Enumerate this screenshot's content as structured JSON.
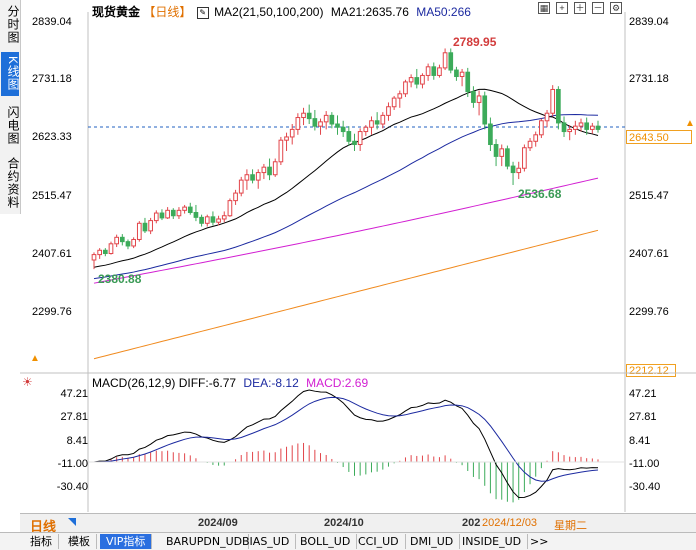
{
  "side_tabs": [
    {
      "label": "分时图",
      "active": false
    },
    {
      "label": "K线图",
      "active": true
    },
    {
      "label": "闪电图",
      "active": false
    },
    {
      "label": "合约资料",
      "active": false
    }
  ],
  "header": {
    "instrument": "现货黄金",
    "period": "【日线】",
    "ma_label": "MA2(21,50,100,200)",
    "ma21": "MA21:2635.76",
    "ma50": "MA50:266"
  },
  "price_axis": {
    "labels": [
      "2839.04",
      "2731.18",
      "2623.33",
      "2515.47",
      "2407.61",
      "2299.76"
    ],
    "last_price": "2643.50",
    "bottom_price": "2212.12"
  },
  "annotations": {
    "high": "2789.95",
    "mid_low": "2536.68",
    "low": "2380.88"
  },
  "macd": {
    "label": "MACD(26,12,9)",
    "diff": "DIFF:-6.77",
    "dea": "DEA:-8.12",
    "macd": "MACD:2.69",
    "axis_labels": [
      "47.21",
      "27.81",
      "8.41",
      "-11.00",
      "-30.40"
    ]
  },
  "time_axis": {
    "labels": [
      "2024/09",
      "2024/10",
      "202"
    ],
    "cursor_date": "2024/12/03",
    "cursor_day": "星期二",
    "period_button": "日线"
  },
  "bottom_tabs": [
    "指标",
    "模板",
    "VIP指标",
    "BARUPDN_UD",
    "BIAS_UD",
    "BOLL_UD",
    "CCI_UD",
    "DMI_UD",
    "INSIDE_UD",
    ">>"
  ],
  "active_bottom_tab": "VIP指标",
  "colors": {
    "up": "#e2454a",
    "down": "#3cab5a",
    "ma21": "#000000",
    "ma50": "#1c2aa0",
    "ma100": "#d21fd2",
    "ma200": "#f08a1e",
    "accent": "#1e6fd9"
  },
  "chart_data": {
    "type": "candlestick",
    "candles": [
      [
        2398,
        2412,
        2381,
        2408
      ],
      [
        2408,
        2420,
        2400,
        2416
      ],
      [
        2416,
        2420,
        2405,
        2410
      ],
      [
        2410,
        2432,
        2408,
        2428
      ],
      [
        2428,
        2445,
        2422,
        2440
      ],
      [
        2440,
        2446,
        2425,
        2432
      ],
      [
        2432,
        2436,
        2418,
        2424
      ],
      [
        2424,
        2440,
        2420,
        2436
      ],
      [
        2436,
        2470,
        2432,
        2466
      ],
      [
        2466,
        2476,
        2448,
        2452
      ],
      [
        2452,
        2476,
        2446,
        2471
      ],
      [
        2471,
        2490,
        2466,
        2485
      ],
      [
        2485,
        2492,
        2472,
        2476
      ],
      [
        2476,
        2496,
        2474,
        2490
      ],
      [
        2490,
        2494,
        2474,
        2480
      ],
      [
        2480,
        2496,
        2474,
        2490
      ],
      [
        2490,
        2500,
        2484,
        2496
      ],
      [
        2496,
        2504,
        2482,
        2486
      ],
      [
        2486,
        2500,
        2470,
        2477
      ],
      [
        2477,
        2482,
        2460,
        2466
      ],
      [
        2466,
        2482,
        2460,
        2478
      ],
      [
        2478,
        2488,
        2462,
        2468
      ],
      [
        2468,
        2480,
        2462,
        2474
      ],
      [
        2474,
        2488,
        2468,
        2480
      ],
      [
        2480,
        2512,
        2478,
        2508
      ],
      [
        2508,
        2528,
        2500,
        2522
      ],
      [
        2522,
        2552,
        2516,
        2546
      ],
      [
        2546,
        2566,
        2528,
        2556
      ],
      [
        2556,
        2566,
        2540,
        2546
      ],
      [
        2546,
        2566,
        2530,
        2560
      ],
      [
        2560,
        2576,
        2548,
        2570
      ],
      [
        2570,
        2586,
        2546,
        2556
      ],
      [
        2556,
        2586,
        2552,
        2580
      ],
      [
        2580,
        2626,
        2574,
        2620
      ],
      [
        2620,
        2634,
        2600,
        2626
      ],
      [
        2626,
        2650,
        2612,
        2640
      ],
      [
        2640,
        2670,
        2630,
        2662
      ],
      [
        2662,
        2680,
        2648,
        2670
      ],
      [
        2670,
        2686,
        2650,
        2660
      ],
      [
        2660,
        2676,
        2638,
        2646
      ],
      [
        2646,
        2660,
        2630,
        2654
      ],
      [
        2654,
        2674,
        2640,
        2666
      ],
      [
        2666,
        2672,
        2642,
        2650
      ],
      [
        2650,
        2666,
        2630,
        2644
      ],
      [
        2644,
        2656,
        2626,
        2636
      ],
      [
        2636,
        2646,
        2610,
        2618
      ],
      [
        2618,
        2632,
        2600,
        2612
      ],
      [
        2612,
        2642,
        2600,
        2636
      ],
      [
        2636,
        2648,
        2628,
        2644
      ],
      [
        2644,
        2664,
        2630,
        2656
      ],
      [
        2656,
        2672,
        2640,
        2650
      ],
      [
        2650,
        2672,
        2642,
        2666
      ],
      [
        2666,
        2690,
        2656,
        2682
      ],
      [
        2682,
        2702,
        2676,
        2698
      ],
      [
        2698,
        2712,
        2680,
        2706
      ],
      [
        2706,
        2732,
        2700,
        2728
      ],
      [
        2728,
        2742,
        2718,
        2736
      ],
      [
        2736,
        2752,
        2716,
        2724
      ],
      [
        2724,
        2744,
        2716,
        2740
      ],
      [
        2740,
        2762,
        2730,
        2756
      ],
      [
        2756,
        2764,
        2732,
        2740
      ],
      [
        2740,
        2760,
        2736,
        2754
      ],
      [
        2754,
        2790,
        2750,
        2782
      ],
      [
        2782,
        2790,
        2744,
        2750
      ],
      [
        2750,
        2756,
        2730,
        2738
      ],
      [
        2738,
        2752,
        2720,
        2746
      ],
      [
        2746,
        2754,
        2700,
        2710
      ],
      [
        2710,
        2720,
        2680,
        2690
      ],
      [
        2690,
        2712,
        2666,
        2702
      ],
      [
        2702,
        2710,
        2640,
        2650
      ],
      [
        2650,
        2662,
        2600,
        2612
      ],
      [
        2612,
        2622,
        2572,
        2590
      ],
      [
        2590,
        2612,
        2572,
        2604
      ],
      [
        2604,
        2610,
        2566,
        2572
      ],
      [
        2572,
        2580,
        2537,
        2560
      ],
      [
        2560,
        2580,
        2548,
        2568
      ],
      [
        2568,
        2612,
        2562,
        2606
      ],
      [
        2606,
        2624,
        2600,
        2618
      ],
      [
        2618,
        2636,
        2608,
        2630
      ],
      [
        2630,
        2660,
        2624,
        2656
      ],
      [
        2656,
        2676,
        2644,
        2670
      ],
      [
        2670,
        2722,
        2664,
        2714
      ],
      [
        2714,
        2720,
        2640,
        2652
      ],
      [
        2652,
        2664,
        2626,
        2636
      ],
      [
        2636,
        2648,
        2620,
        2640
      ],
      [
        2640,
        2656,
        2630,
        2646
      ],
      [
        2646,
        2660,
        2636,
        2652
      ],
      [
        2652,
        2662,
        2630,
        2640
      ],
      [
        2640,
        2652,
        2632,
        2646
      ],
      [
        2646,
        2656,
        2634,
        2640
      ]
    ]
  }
}
